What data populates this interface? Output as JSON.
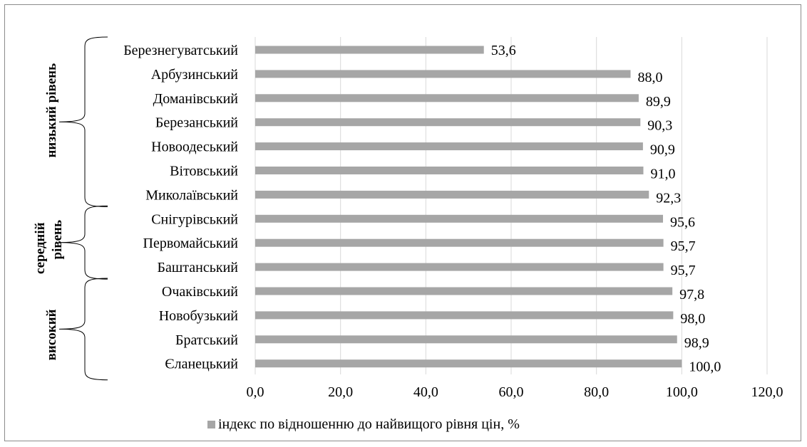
{
  "chart_data": {
    "type": "bar",
    "orientation": "horizontal",
    "categories": [
      "Березнегуватський",
      "Арбузинський",
      "Доманівський",
      "Березанський",
      "Новоодеський",
      "Вітовський",
      "Миколаївський",
      "Снігурівський",
      "Первомайський",
      "Баштанський",
      "Очаківський",
      "Новобузький",
      "Братський",
      "Єланецький"
    ],
    "series": [
      {
        "name": "індекс по відношенню до найвищого рівня цін, %",
        "values": [
          53.6,
          88.0,
          89.9,
          90.3,
          90.9,
          91.0,
          92.3,
          95.6,
          95.7,
          95.7,
          97.8,
          98.0,
          98.9,
          100.0
        ],
        "value_labels": [
          "53,6",
          "88,0",
          "89,9",
          "90,3",
          "90,9",
          "91,0",
          "92,3",
          "95,6",
          "95,7",
          "95,7",
          "97,8",
          "98,0",
          "98,9",
          "100,0"
        ],
        "color": "#a6a6a6"
      }
    ],
    "xlim": [
      0,
      120
    ],
    "x_ticks": [
      0,
      20,
      40,
      60,
      80,
      100,
      120
    ],
    "x_tick_labels": [
      "0,0",
      "20,0",
      "40,0",
      "60,0",
      "80,0",
      "100,0",
      "120,0"
    ],
    "grid": "vertical",
    "legend": "bottom",
    "groups": [
      {
        "label": "низький рівень",
        "from": 0,
        "to": 6
      },
      {
        "label_lines": [
          "середній",
          "рівень"
        ],
        "from": 7,
        "to": 9
      },
      {
        "label": "високий",
        "from": 10,
        "to": 13
      }
    ]
  },
  "colors": {
    "bar": "#a6a6a6",
    "grid": "#d9d9d9",
    "frame": "#8c8c8c"
  }
}
